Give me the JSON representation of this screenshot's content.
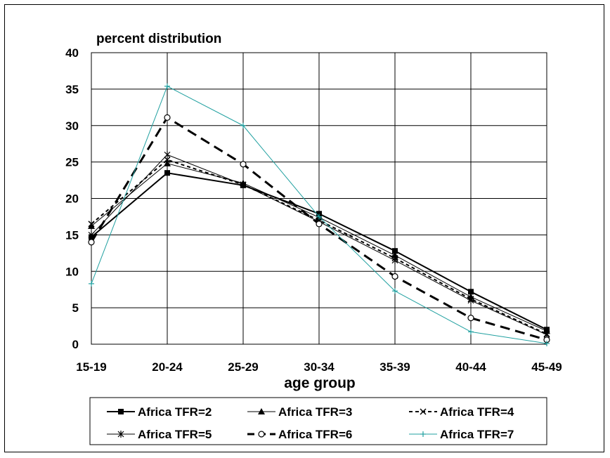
{
  "chart_data": {
    "type": "line",
    "title": "percent distribution",
    "xlabel": "age group",
    "ylabel": "",
    "categories": [
      "15-19",
      "20-24",
      "25-29",
      "30-34",
      "35-39",
      "40-44",
      "45-49"
    ],
    "yticks": [
      "0",
      "5",
      "10",
      "15",
      "20",
      "25",
      "30",
      "35",
      "40"
    ],
    "ylim": [
      0,
      40
    ],
    "grid": true,
    "legend_position": "bottom",
    "series": [
      {
        "name": "Africa TFR=2",
        "values": [
          14.7,
          23.5,
          21.8,
          17.9,
          12.8,
          7.2,
          2.0
        ],
        "marker": "square",
        "dash": "solid",
        "width": 2
      },
      {
        "name": "Africa TFR=3",
        "values": [
          16.2,
          24.8,
          22.1,
          17.4,
          12.2,
          6.5,
          1.8
        ],
        "marker": "triangle",
        "dash": "solid",
        "width": 1
      },
      {
        "name": "Africa TFR=4",
        "values": [
          16.5,
          25.3,
          21.9,
          17.0,
          11.8,
          6.2,
          1.4
        ],
        "marker": "x",
        "dash": "dashed",
        "width": 2
      },
      {
        "name": "Africa TFR=5",
        "values": [
          15.0,
          26.0,
          21.9,
          16.8,
          11.5,
          6.0,
          1.3
        ],
        "marker": "star",
        "dash": "solid",
        "width": 1
      },
      {
        "name": "Africa TFR=6",
        "values": [
          14.0,
          31.1,
          24.7,
          16.5,
          9.3,
          3.6,
          0.6
        ],
        "marker": "circle",
        "dash": "longdash",
        "width": 3
      },
      {
        "name": "Africa TFR=7",
        "values": [
          8.3,
          35.4,
          30.0,
          17.5,
          7.3,
          1.7,
          0.1
        ],
        "marker": "plus",
        "dash": "solid",
        "width": 1,
        "color": "#20a0a0"
      }
    ]
  }
}
